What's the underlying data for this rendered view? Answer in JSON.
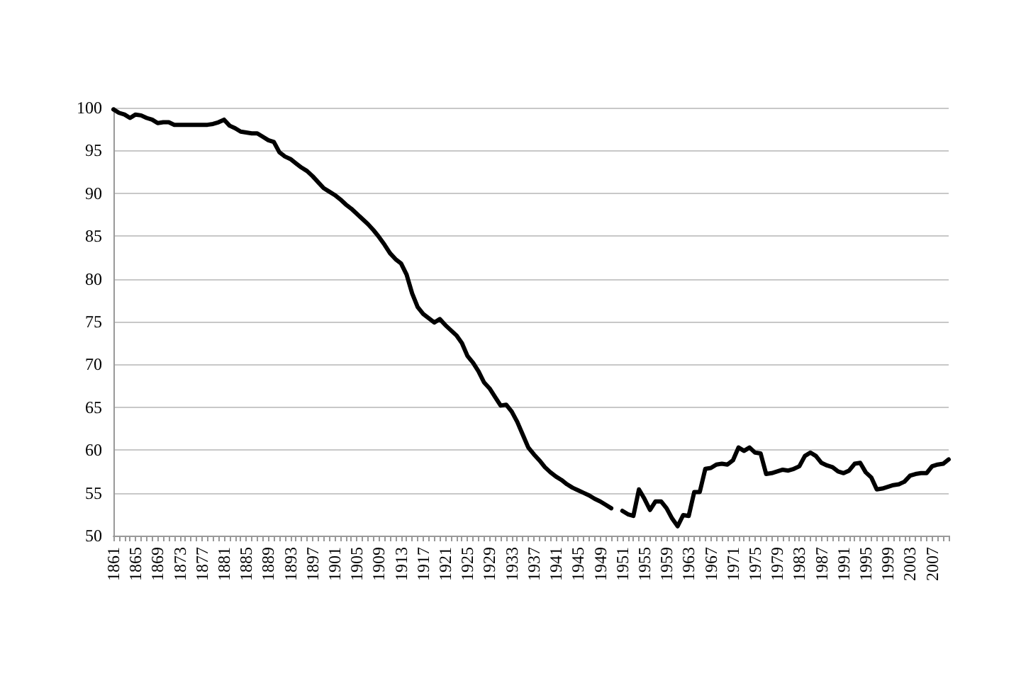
{
  "chart_data": {
    "type": "line",
    "categories": [
      "1861",
      null,
      null,
      null,
      "1865",
      null,
      null,
      null,
      "1869",
      null,
      null,
      null,
      "1873",
      null,
      null,
      null,
      "1877",
      null,
      null,
      null,
      "1881",
      null,
      null,
      null,
      "1885",
      null,
      null,
      null,
      "1889",
      null,
      null,
      null,
      "1893",
      null,
      null,
      null,
      "1897",
      null,
      null,
      null,
      "1901",
      null,
      null,
      null,
      "1905",
      null,
      null,
      null,
      "1909",
      null,
      null,
      null,
      "1913",
      null,
      null,
      null,
      "1917",
      null,
      null,
      null,
      "1921",
      null,
      null,
      null,
      "1925",
      null,
      null,
      null,
      "1929",
      null,
      null,
      null,
      "1933",
      null,
      null,
      null,
      "1937",
      null,
      null,
      null,
      "1941",
      null,
      null,
      null,
      "1945",
      null,
      null,
      null,
      "1949",
      null,
      null,
      null,
      "1951",
      null,
      null,
      null,
      "1955",
      null,
      null,
      null,
      "1959",
      null,
      null,
      null,
      "1963",
      null,
      null,
      null,
      "1967",
      null,
      null,
      null,
      "1971",
      null,
      null,
      null,
      "1975",
      null,
      null,
      null,
      "1979",
      null,
      null,
      null,
      "1983",
      null,
      null,
      null,
      "1987",
      null,
      null,
      null,
      "1991",
      null,
      null,
      null,
      "1995",
      null,
      null,
      null,
      "1999",
      null,
      null,
      null,
      "2003",
      null,
      null,
      null,
      "2007",
      null,
      null,
      null
    ],
    "series": [
      {
        "color": "#000000",
        "values": [
          99.8,
          99.4,
          99.2,
          98.8,
          99.2,
          99.1,
          98.8,
          98.6,
          98.2,
          98.3,
          98.3,
          98.0,
          98.0,
          98.0,
          98.0,
          98.0,
          98.0,
          98.0,
          98.1,
          98.3,
          98.6,
          97.9,
          97.6,
          97.2,
          97.1,
          97.0,
          97.0,
          96.6,
          96.2,
          96.0,
          94.8,
          94.3,
          94.0,
          93.5,
          93.0,
          92.6,
          92.0,
          91.3,
          90.6,
          90.2,
          89.8,
          89.3,
          88.7,
          88.2,
          87.6,
          87.0,
          86.4,
          85.7,
          84.9,
          84.0,
          83.0,
          82.3,
          81.8,
          80.5,
          78.3,
          76.7,
          75.9,
          75.4,
          74.9,
          75.3,
          74.6,
          74.0,
          73.4,
          72.5,
          71.0,
          70.2,
          69.2,
          67.9,
          67.2,
          66.2,
          65.2,
          65.3,
          64.5,
          63.3,
          61.8,
          60.3,
          59.5,
          58.8,
          58.0,
          57.4,
          56.9,
          56.5,
          56.0,
          55.6,
          55.3,
          55.0,
          54.7,
          54.3,
          54.0,
          53.6,
          53.2,
          null,
          52.9,
          52.5,
          52.3,
          55.4,
          54.3,
          53.0,
          54.0,
          54.0,
          53.2,
          52.0,
          51.1,
          52.4,
          52.3,
          55.1,
          55.1,
          57.8,
          57.9,
          58.3,
          58.4,
          58.3,
          58.8,
          60.3,
          59.9,
          60.3,
          59.7,
          59.6,
          57.2,
          57.3,
          57.5,
          57.7,
          57.6,
          57.8,
          58.1,
          59.3,
          59.7,
          59.3,
          58.5,
          58.2,
          58.0,
          57.5,
          57.3,
          57.6,
          58.4,
          58.5,
          57.4,
          56.8,
          55.4,
          55.5,
          55.7,
          55.9,
          56.0,
          56.3,
          57.0,
          57.2,
          57.3,
          57.3,
          58.1,
          58.3,
          58.4,
          58.9
        ]
      }
    ],
    "ylim": [
      50,
      100
    ],
    "yticks": [
      50,
      55,
      60,
      65,
      70,
      75,
      80,
      85,
      90,
      95,
      100
    ],
    "grid": "y",
    "marker": "none",
    "line_style": "solid"
  }
}
